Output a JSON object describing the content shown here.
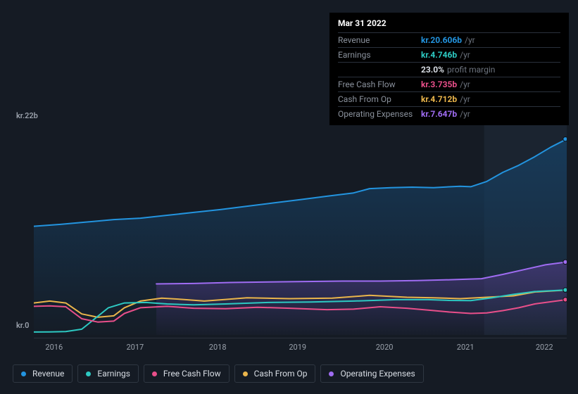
{
  "tooltip": {
    "date": "Mar 31 2022",
    "rows": [
      {
        "label": "Revenue",
        "value": "kr.20.606b",
        "unit": "/yr",
        "color": "#2394df"
      },
      {
        "label": "Earnings",
        "value": "kr.4.746b",
        "unit": "/yr",
        "color": "#2dc9c2",
        "extra_value": "23.0%",
        "extra_label": "profit margin"
      },
      {
        "label": "Free Cash Flow",
        "value": "kr.3.735b",
        "unit": "/yr",
        "color": "#e94f8a"
      },
      {
        "label": "Cash From Op",
        "value": "kr.4.712b",
        "unit": "/yr",
        "color": "#eab54b"
      },
      {
        "label": "Operating Expenses",
        "value": "kr.7.647b",
        "unit": "/yr",
        "color": "#9f6cf2"
      }
    ]
  },
  "chart": {
    "type": "area-line",
    "background_color": "#151b24",
    "plot_highlight_color": "#1b2430",
    "grid_color": "#2a313c",
    "y_top_label": "kr.22b",
    "y_bottom_label": "kr.0",
    "x_labels": [
      "2016",
      "2017",
      "2018",
      "2019",
      "2020",
      "2021",
      "2022"
    ],
    "x_label_positions_pct": [
      3.8,
      19.0,
      34.5,
      49.5,
      65.8,
      81.0,
      95.8
    ],
    "highlight_from_pct": 84.5,
    "ymin": 0,
    "ymax": 22,
    "series": [
      {
        "name": "Revenue",
        "color": "#2394df",
        "area": true,
        "area_fill_top": "rgba(22,63,98,0.82)",
        "area_fill_bottom": "rgba(22,63,98,0.04)",
        "points": [
          [
            0,
            11.4
          ],
          [
            5,
            11.6
          ],
          [
            10,
            11.85
          ],
          [
            15,
            12.1
          ],
          [
            20,
            12.25
          ],
          [
            25,
            12.55
          ],
          [
            30,
            12.85
          ],
          [
            35,
            13.15
          ],
          [
            40,
            13.5
          ],
          [
            45,
            13.85
          ],
          [
            50,
            14.2
          ],
          [
            55,
            14.55
          ],
          [
            60,
            14.9
          ],
          [
            63,
            15.35
          ],
          [
            67,
            15.45
          ],
          [
            71,
            15.5
          ],
          [
            75,
            15.45
          ],
          [
            80,
            15.6
          ],
          [
            82,
            15.55
          ],
          [
            85,
            16.1
          ],
          [
            88,
            17.05
          ],
          [
            91,
            17.8
          ],
          [
            94,
            18.7
          ],
          [
            97,
            19.7
          ],
          [
            100,
            20.55
          ]
        ]
      },
      {
        "name": "Operating Expenses",
        "color": "#9f6cf2",
        "area": true,
        "area_fill_top": "rgba(90,62,145,0.55)",
        "area_fill_bottom": "rgba(90,62,145,0.03)",
        "start_pct": 23,
        "points": [
          [
            23,
            5.35
          ],
          [
            30,
            5.4
          ],
          [
            37,
            5.5
          ],
          [
            44,
            5.55
          ],
          [
            51,
            5.6
          ],
          [
            58,
            5.65
          ],
          [
            65,
            5.65
          ],
          [
            72,
            5.7
          ],
          [
            79,
            5.8
          ],
          [
            84,
            5.9
          ],
          [
            88,
            6.35
          ],
          [
            92,
            6.85
          ],
          [
            96,
            7.35
          ],
          [
            100,
            7.65
          ]
        ]
      },
      {
        "name": "Cash From Op",
        "color": "#eab54b",
        "area": false,
        "points": [
          [
            0,
            3.35
          ],
          [
            3,
            3.55
          ],
          [
            6,
            3.35
          ],
          [
            9,
            2.2
          ],
          [
            12,
            1.85
          ],
          [
            15,
            2.0
          ],
          [
            17,
            2.85
          ],
          [
            20,
            3.55
          ],
          [
            24,
            3.85
          ],
          [
            28,
            3.72
          ],
          [
            32,
            3.55
          ],
          [
            36,
            3.72
          ],
          [
            40,
            3.9
          ],
          [
            48,
            3.8
          ],
          [
            56,
            3.85
          ],
          [
            63,
            4.15
          ],
          [
            70,
            3.95
          ],
          [
            75,
            3.9
          ],
          [
            80,
            3.8
          ],
          [
            85,
            3.95
          ],
          [
            90,
            4.1
          ],
          [
            94,
            4.5
          ],
          [
            100,
            4.7
          ]
        ]
      },
      {
        "name": "Earnings",
        "color": "#2dc9c2",
        "area": false,
        "points": [
          [
            0,
            0.3
          ],
          [
            3,
            0.32
          ],
          [
            6,
            0.35
          ],
          [
            9,
            0.6
          ],
          [
            11,
            1.5
          ],
          [
            14,
            2.85
          ],
          [
            17,
            3.35
          ],
          [
            21,
            3.4
          ],
          [
            25,
            3.25
          ],
          [
            30,
            3.15
          ],
          [
            36,
            3.25
          ],
          [
            44,
            3.4
          ],
          [
            52,
            3.45
          ],
          [
            60,
            3.55
          ],
          [
            68,
            3.7
          ],
          [
            74,
            3.7
          ],
          [
            78,
            3.62
          ],
          [
            82,
            3.6
          ],
          [
            86,
            3.9
          ],
          [
            90,
            4.25
          ],
          [
            94,
            4.55
          ],
          [
            100,
            4.72
          ]
        ]
      },
      {
        "name": "Free Cash Flow",
        "color": "#e94f8a",
        "area": false,
        "points": [
          [
            0,
            3.0
          ],
          [
            3,
            3.05
          ],
          [
            6,
            2.95
          ],
          [
            9,
            1.7
          ],
          [
            12,
            1.35
          ],
          [
            15,
            1.45
          ],
          [
            17,
            2.25
          ],
          [
            20,
            2.85
          ],
          [
            25,
            3.0
          ],
          [
            30,
            2.8
          ],
          [
            36,
            2.75
          ],
          [
            42,
            2.9
          ],
          [
            48,
            2.8
          ],
          [
            55,
            2.65
          ],
          [
            60,
            2.7
          ],
          [
            65,
            2.95
          ],
          [
            70,
            2.8
          ],
          [
            74,
            2.6
          ],
          [
            78,
            2.4
          ],
          [
            82,
            2.25
          ],
          [
            85,
            2.3
          ],
          [
            88,
            2.55
          ],
          [
            91,
            2.85
          ],
          [
            94,
            3.25
          ],
          [
            100,
            3.7
          ]
        ]
      }
    ],
    "end_markers": [
      {
        "color": "#2394df",
        "y": 20.55
      },
      {
        "color": "#9f6cf2",
        "y": 7.65
      },
      {
        "color": "#eab54b",
        "y": 4.7
      },
      {
        "color": "#2dc9c2",
        "y": 4.72
      },
      {
        "color": "#e94f8a",
        "y": 3.7
      }
    ]
  },
  "legend": [
    {
      "label": "Revenue",
      "color": "#2394df"
    },
    {
      "label": "Earnings",
      "color": "#2dc9c2"
    },
    {
      "label": "Free Cash Flow",
      "color": "#e94f8a"
    },
    {
      "label": "Cash From Op",
      "color": "#eab54b"
    },
    {
      "label": "Operating Expenses",
      "color": "#9f6cf2"
    }
  ]
}
